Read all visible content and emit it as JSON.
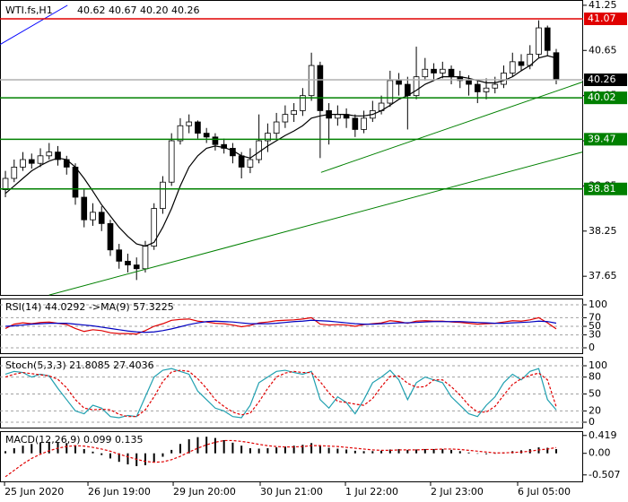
{
  "chart_data": [
    {
      "type": "candlestick",
      "title": "WTI.fs,H1",
      "quote": "40.62 40.67 40.20 40.26",
      "xlim": [
        -0.62,
        66.08
      ],
      "ylim": [
        37.39,
        41.32
      ],
      "yticks": [
        37.65,
        38.25,
        38.85,
        39.45,
        40.05,
        40.65,
        41.25
      ],
      "xticks": [
        {
          "value": -0.1,
          "label": "25 Jun 2020"
        },
        {
          "value": 9.44,
          "label": "26 Jun 19:00"
        },
        {
          "value": 19.19,
          "label": "29 Jun 20:00"
        },
        {
          "value": 29.14,
          "label": "30 Jun 21:00"
        },
        {
          "value": 38.89,
          "label": "1 Jul 22:00"
        },
        {
          "value": 48.63,
          "label": "2 Jul 23:00"
        },
        {
          "value": 58.59,
          "label": "6 Jul 05:00"
        }
      ],
      "grid": false,
      "up_color": "#ffffff",
      "down_color": "#000000",
      "open": [
        38.8,
        38.95,
        39.1,
        39.2,
        39.15,
        39.25,
        39.3,
        39.2,
        39.1,
        38.7,
        38.4,
        38.5,
        38.35,
        38.0,
        37.85,
        37.8,
        37.75,
        38.05,
        38.55,
        38.9,
        39.45,
        39.65,
        39.7,
        39.55,
        39.5,
        39.4,
        39.35,
        39.25,
        39.1,
        39.2,
        39.45,
        39.55,
        39.7,
        39.8,
        39.85,
        40.05,
        40.45,
        39.85,
        39.75,
        39.8,
        39.75,
        39.6,
        39.75,
        39.85,
        39.95,
        40.25,
        40.2,
        40.05,
        40.3,
        40.4,
        40.35,
        40.4,
        40.3,
        40.25,
        40.2,
        40.1,
        40.15,
        40.2,
        40.35,
        40.5,
        40.45,
        40.6,
        40.95,
        40.62
      ],
      "high": [
        39.05,
        39.2,
        39.3,
        39.28,
        39.35,
        39.42,
        39.38,
        39.25,
        39.15,
        38.8,
        38.62,
        38.58,
        38.4,
        38.08,
        37.95,
        37.9,
        38.12,
        38.62,
        38.98,
        39.55,
        39.75,
        39.8,
        39.72,
        39.62,
        39.55,
        39.48,
        39.42,
        39.3,
        39.35,
        39.8,
        39.68,
        39.82,
        39.92,
        39.95,
        40.15,
        40.62,
        40.5,
        39.95,
        39.92,
        39.88,
        39.8,
        39.85,
        39.98,
        40.05,
        40.38,
        40.35,
        40.3,
        40.7,
        40.55,
        40.48,
        40.5,
        40.45,
        40.38,
        40.32,
        40.25,
        40.28,
        40.3,
        40.45,
        40.62,
        40.6,
        40.72,
        41.05,
        40.98,
        40.67
      ],
      "low": [
        38.7,
        38.9,
        39.05,
        39.08,
        39.1,
        39.2,
        39.12,
        39.0,
        38.6,
        38.3,
        38.32,
        38.25,
        37.92,
        37.75,
        37.7,
        37.6,
        37.7,
        38.0,
        38.48,
        38.85,
        39.4,
        39.55,
        39.48,
        39.42,
        39.32,
        39.28,
        39.15,
        38.95,
        39.02,
        39.15,
        39.3,
        39.48,
        39.62,
        39.7,
        39.78,
        39.98,
        39.22,
        39.4,
        39.65,
        39.62,
        39.5,
        39.55,
        39.7,
        39.8,
        39.9,
        40.05,
        39.6,
        40.0,
        40.25,
        40.25,
        40.28,
        40.2,
        40.15,
        40.05,
        39.95,
        40.0,
        40.08,
        40.15,
        40.3,
        40.38,
        40.4,
        40.55,
        40.58,
        40.2
      ],
      "close": [
        38.95,
        39.1,
        39.2,
        39.15,
        39.25,
        39.3,
        39.2,
        39.1,
        38.7,
        38.4,
        38.5,
        38.35,
        38.0,
        37.85,
        37.8,
        37.75,
        38.05,
        38.55,
        38.9,
        39.45,
        39.65,
        39.7,
        39.55,
        39.5,
        39.4,
        39.35,
        39.25,
        39.1,
        39.2,
        39.45,
        39.55,
        39.7,
        39.8,
        39.85,
        40.05,
        40.45,
        39.85,
        39.75,
        39.8,
        39.75,
        39.6,
        39.75,
        39.85,
        39.95,
        40.25,
        40.2,
        40.05,
        40.3,
        40.4,
        40.35,
        40.4,
        40.3,
        40.25,
        40.2,
        40.1,
        40.15,
        40.2,
        40.35,
        40.5,
        40.45,
        40.6,
        40.95,
        40.65,
        40.26
      ],
      "series": [
        {
          "color": "#000000",
          "values": [
            38.75,
            38.85,
            38.95,
            39.05,
            39.12,
            39.18,
            39.22,
            39.2,
            39.1,
            38.95,
            38.78,
            38.6,
            38.45,
            38.3,
            38.18,
            38.08,
            38.05,
            38.1,
            38.3,
            38.55,
            38.85,
            39.1,
            39.25,
            39.35,
            39.38,
            39.36,
            39.32,
            39.25,
            39.22,
            39.3,
            39.38,
            39.45,
            39.52,
            39.58,
            39.65,
            39.75,
            39.78,
            39.8,
            39.8,
            39.8,
            39.78,
            39.78,
            39.8,
            39.85,
            39.92,
            40.0,
            40.05,
            40.12,
            40.2,
            40.25,
            40.3,
            40.3,
            40.3,
            40.28,
            40.25,
            40.22,
            40.22,
            40.25,
            40.3,
            40.38,
            40.45,
            40.55,
            40.58,
            40.55
          ]
        }
      ],
      "trendlines": [
        {
          "color": "#0000ff",
          "x": [
            -0.6,
            7.1
          ],
          "y": [
            40.73,
            41.25
          ]
        },
        {
          "color": "#008000",
          "x": [
            36.1,
            66.0
          ],
          "y": [
            39.03,
            40.23
          ]
        },
        {
          "color": "#008000",
          "x": [
            5.0,
            66.0
          ],
          "y": [
            37.4,
            39.3
          ]
        }
      ],
      "levels": [
        {
          "value": 41.07,
          "color": "#e00000",
          "label_color": "#e00000"
        },
        {
          "value": 40.26,
          "color": "#b0b0b0",
          "label_color": "#000000"
        },
        {
          "value": 40.02,
          "color": "#008000",
          "label_color": "#008000"
        },
        {
          "value": 39.47,
          "color": "#008000",
          "label_color": "#008000"
        },
        {
          "value": 38.81,
          "color": "#008000",
          "label_color": "#008000"
        }
      ]
    },
    {
      "type": "line",
      "title": "RSI(14) 44.0292 ->MA(9) 57.3225",
      "ylim": [
        -14.6,
        114.6
      ],
      "yticks": [
        0,
        30,
        50,
        70,
        100
      ],
      "grid": true,
      "series": [
        {
          "color": "#e00000",
          "values": [
            45,
            55,
            58,
            56,
            59,
            60,
            57,
            54,
            45,
            38,
            42,
            40,
            35,
            33,
            33,
            32,
            40,
            50,
            56,
            64,
            66,
            67,
            62,
            60,
            57,
            56,
            53,
            49,
            52,
            58,
            60,
            63,
            64,
            65,
            67,
            70,
            55,
            53,
            54,
            53,
            50,
            54,
            56,
            58,
            63,
            61,
            57,
            62,
            63,
            62,
            62,
            60,
            59,
            57,
            55,
            56,
            57,
            60,
            63,
            62,
            65,
            70,
            58,
            44.0292
          ]
        },
        {
          "color": "#0000c0",
          "values": [
            50,
            51,
            53,
            55,
            56,
            57,
            57,
            57,
            55,
            53,
            51,
            48,
            45,
            42,
            39,
            37,
            36,
            37,
            40,
            44,
            49,
            54,
            58,
            61,
            62,
            61,
            60,
            58,
            56,
            56,
            56,
            57,
            59,
            61,
            62,
            64,
            63,
            62,
            60,
            58,
            56,
            55,
            55,
            56,
            57,
            58,
            58,
            59,
            60,
            61,
            61,
            61,
            61,
            60,
            59,
            58,
            57,
            57,
            58,
            59,
            60,
            62,
            61,
            57.3225
          ]
        }
      ]
    },
    {
      "type": "line",
      "title": "Stoch(5,3,3) 21.8085 27.4036",
      "ylim": [
        -11.1,
        115.9
      ],
      "yticks": [
        0,
        20,
        50,
        80,
        100
      ],
      "grid": true,
      "series": [
        {
          "color": "#20a0b0",
          "values": [
            85,
            90,
            88,
            80,
            85,
            82,
            60,
            40,
            20,
            15,
            30,
            25,
            10,
            8,
            12,
            10,
            45,
            80,
            92,
            95,
            90,
            85,
            55,
            40,
            25,
            20,
            10,
            8,
            30,
            70,
            80,
            90,
            92,
            88,
            85,
            90,
            40,
            25,
            45,
            35,
            15,
            40,
            70,
            80,
            92,
            75,
            40,
            70,
            80,
            75,
            70,
            45,
            30,
            15,
            10,
            30,
            45,
            70,
            85,
            75,
            90,
            95,
            40,
            21.8085
          ]
        },
        {
          "color": "#e00000",
          "dash": true,
          "values": [
            80,
            85,
            88,
            86,
            84,
            82,
            76,
            61,
            40,
            25,
            22,
            23,
            22,
            14,
            10,
            10,
            22,
            45,
            72,
            89,
            92,
            90,
            77,
            60,
            40,
            28,
            18,
            13,
            16,
            36,
            60,
            80,
            87,
            90,
            88,
            88,
            72,
            52,
            37,
            35,
            32,
            30,
            42,
            63,
            81,
            82,
            69,
            62,
            63,
            75,
            75,
            63,
            48,
            30,
            18,
            18,
            28,
            48,
            67,
            77,
            83,
            87,
            75,
            27.4036
          ]
        }
      ]
    },
    {
      "type": "bar",
      "title": "MACD(12,26,9) 0.099 0.135",
      "ylim": [
        -0.68,
        0.52
      ],
      "yticks": [
        -0.507,
        {
          "value": 0,
          "label": "0.00"
        },
        0.419
      ],
      "grid": false,
      "series": [
        {
          "kind": "bar",
          "color": "#000000",
          "values": [
            0.05,
            0.12,
            0.18,
            0.22,
            0.25,
            0.27,
            0.26,
            0.24,
            0.18,
            0.1,
            0.04,
            -0.04,
            -0.12,
            -0.2,
            -0.26,
            -0.3,
            -0.28,
            -0.2,
            -0.08,
            0.08,
            0.22,
            0.33,
            0.38,
            0.39,
            0.36,
            0.31,
            0.25,
            0.18,
            0.12,
            0.11,
            0.12,
            0.14,
            0.16,
            0.18,
            0.2,
            0.24,
            0.18,
            0.13,
            0.11,
            0.09,
            0.06,
            0.05,
            0.05,
            0.06,
            0.09,
            0.1,
            0.08,
            0.09,
            0.1,
            0.1,
            0.1,
            0.08,
            0.05,
            0.02,
            -0.01,
            -0.02,
            -0.01,
            0.02,
            0.05,
            0.07,
            0.1,
            0.14,
            0.13,
            0.099
          ]
        },
        {
          "kind": "line",
          "color": "#e00000",
          "dash": true,
          "values": [
            -0.55,
            -0.4,
            -0.25,
            -0.12,
            -0.02,
            0.06,
            0.12,
            0.16,
            0.18,
            0.17,
            0.14,
            0.1,
            0.05,
            -0.02,
            -0.08,
            -0.14,
            -0.19,
            -0.21,
            -0.2,
            -0.15,
            -0.07,
            0.03,
            0.12,
            0.2,
            0.26,
            0.3,
            0.3,
            0.28,
            0.25,
            0.21,
            0.18,
            0.16,
            0.15,
            0.15,
            0.16,
            0.18,
            0.18,
            0.17,
            0.16,
            0.14,
            0.12,
            0.1,
            0.08,
            0.07,
            0.07,
            0.08,
            0.08,
            0.08,
            0.09,
            0.09,
            0.1,
            0.1,
            0.09,
            0.07,
            0.05,
            0.03,
            0.01,
            0.01,
            0.02,
            0.03,
            0.05,
            0.08,
            0.1,
            0.135
          ]
        }
      ]
    }
  ]
}
